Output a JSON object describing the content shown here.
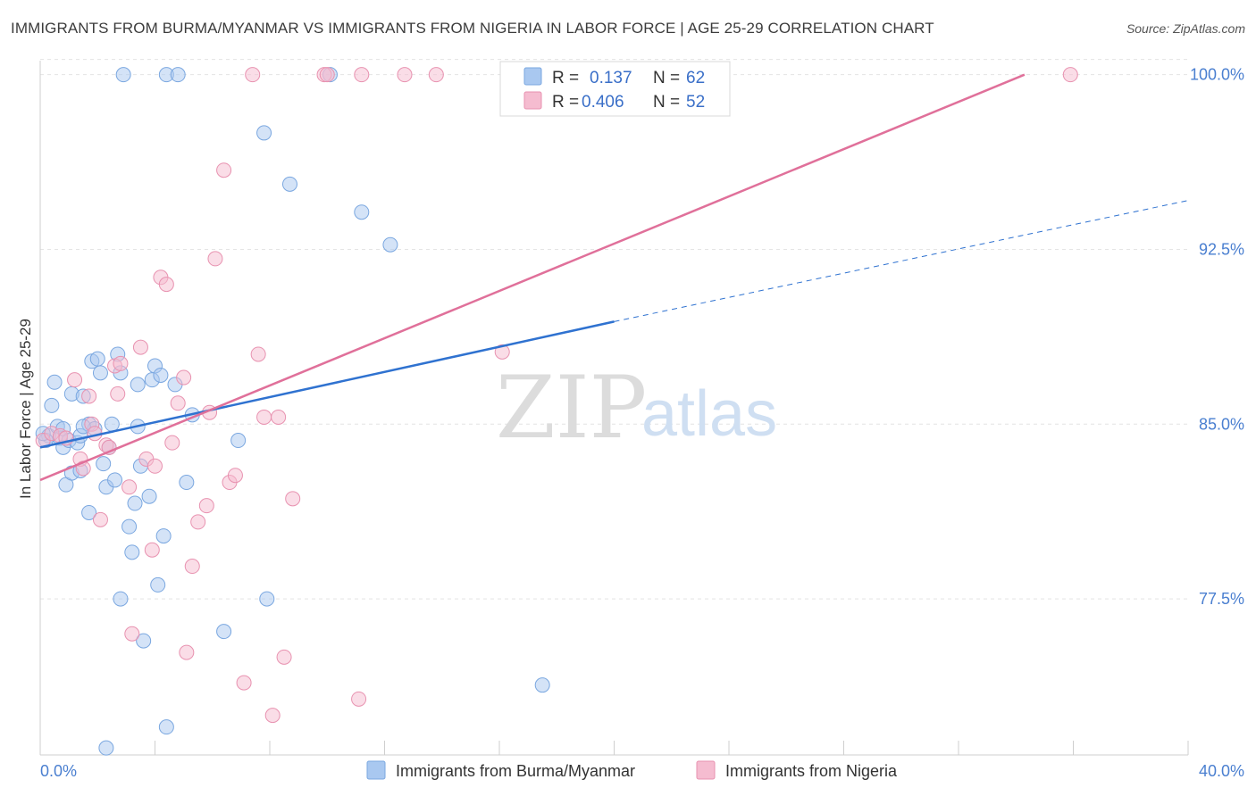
{
  "header": {
    "title": "IMMIGRANTS FROM BURMA/MYANMAR VS IMMIGRANTS FROM NIGERIA IN LABOR FORCE | AGE 25-29 CORRELATION CHART",
    "source": "Source: ZipAtlas.com"
  },
  "watermark": {
    "zip": "ZIP",
    "atlas": "atlas"
  },
  "colors": {
    "burma": "#a9c8f0",
    "burma_stroke": "#7aa7e0",
    "burma_line": "#2f72d0",
    "nigeria": "#f5bcd0",
    "nigeria_stroke": "#e892b0",
    "nigeria_line": "#e0709a",
    "tick": "#4a7fd0"
  },
  "legend": {
    "series": [
      {
        "r_label": "R =",
        "r_value": "0.137",
        "n_label": "N =",
        "n_value": "62"
      },
      {
        "r_label": "R =",
        "r_value": "0.406",
        "n_label": "N =",
        "n_value": "52"
      }
    ]
  },
  "chart_data": {
    "type": "scatter",
    "title": "IMMIGRANTS FROM BURMA/MYANMAR VS IMMIGRANTS FROM NIGERIA IN LABOR FORCE | AGE 25-29 CORRELATION CHART",
    "xlabel": "",
    "ylabel": "In Labor Force | Age 25-29",
    "xlim": [
      0,
      40
    ],
    "ylim": [
      70.8,
      100.6
    ],
    "x_tick_labels": [
      "0.0%",
      "40.0%"
    ],
    "y_ticks": [
      77.5,
      85.0,
      92.5,
      100.0
    ],
    "y_tick_labels": [
      "77.5%",
      "85.0%",
      "92.5%",
      "100.0%"
    ],
    "legend_placement": "top-center",
    "series": [
      {
        "name": "Immigrants from Burma/Myanmar",
        "r": 0.137,
        "n": 62,
        "trend": {
          "x": [
            0.0,
            20.0
          ],
          "y": [
            84.0,
            89.4
          ],
          "dashed_to": [
            40.0,
            94.6
          ]
        },
        "points": [
          [
            0.3,
            84.5
          ],
          [
            0.4,
            85.8
          ],
          [
            0.5,
            86.8
          ],
          [
            0.6,
            84.9
          ],
          [
            0.7,
            84.4
          ],
          [
            0.8,
            84.8
          ],
          [
            0.8,
            84.0
          ],
          [
            0.9,
            82.4
          ],
          [
            1.0,
            84.3
          ],
          [
            1.1,
            86.3
          ],
          [
            1.1,
            82.9
          ],
          [
            1.3,
            84.2
          ],
          [
            1.4,
            83.0
          ],
          [
            1.4,
            84.5
          ],
          [
            1.5,
            86.2
          ],
          [
            1.7,
            85.0
          ],
          [
            1.7,
            81.2
          ],
          [
            1.8,
            87.7
          ],
          [
            1.9,
            84.8
          ],
          [
            2.0,
            87.8
          ],
          [
            2.1,
            87.2
          ],
          [
            2.2,
            83.3
          ],
          [
            2.3,
            82.3
          ],
          [
            2.4,
            84.0
          ],
          [
            2.5,
            85.0
          ],
          [
            2.6,
            82.6
          ],
          [
            2.7,
            88.0
          ],
          [
            2.8,
            87.2
          ],
          [
            2.8,
            77.5
          ],
          [
            2.9,
            100.0
          ],
          [
            3.1,
            80.6
          ],
          [
            3.2,
            79.5
          ],
          [
            3.3,
            81.6
          ],
          [
            3.4,
            84.9
          ],
          [
            3.4,
            86.7
          ],
          [
            3.5,
            83.2
          ],
          [
            3.6,
            75.7
          ],
          [
            3.8,
            81.9
          ],
          [
            3.9,
            86.9
          ],
          [
            4.0,
            87.5
          ],
          [
            4.1,
            78.1
          ],
          [
            4.2,
            87.1
          ],
          [
            4.3,
            80.2
          ],
          [
            4.4,
            100.0
          ],
          [
            4.4,
            72.0
          ],
          [
            4.8,
            100.0
          ],
          [
            4.7,
            86.7
          ],
          [
            5.1,
            82.5
          ],
          [
            5.3,
            85.4
          ],
          [
            6.4,
            76.1
          ],
          [
            6.9,
            84.3
          ],
          [
            7.8,
            97.5
          ],
          [
            7.9,
            77.5
          ],
          [
            8.7,
            95.3
          ],
          [
            10.1,
            100.0
          ],
          [
            11.2,
            94.1
          ],
          [
            12.2,
            92.7
          ],
          [
            17.5,
            73.8
          ],
          [
            2.3,
            71.1
          ],
          [
            1.5,
            84.9
          ],
          [
            0.2,
            84.3
          ],
          [
            0.1,
            84.6
          ]
        ]
      },
      {
        "name": "Immigrants from Nigeria",
        "r": 0.406,
        "n": 52,
        "trend": {
          "x": [
            0.0,
            34.3
          ],
          "y": [
            82.6,
            100.0
          ]
        },
        "points": [
          [
            0.1,
            84.3
          ],
          [
            0.4,
            84.6
          ],
          [
            0.7,
            84.5
          ],
          [
            0.9,
            84.4
          ],
          [
            1.2,
            86.9
          ],
          [
            1.4,
            83.5
          ],
          [
            1.5,
            83.1
          ],
          [
            1.7,
            86.2
          ],
          [
            1.8,
            85.0
          ],
          [
            1.9,
            84.6
          ],
          [
            2.1,
            80.9
          ],
          [
            2.3,
            84.1
          ],
          [
            2.4,
            84.0
          ],
          [
            2.6,
            87.5
          ],
          [
            2.7,
            86.3
          ],
          [
            2.8,
            87.6
          ],
          [
            3.1,
            82.3
          ],
          [
            3.2,
            76.0
          ],
          [
            3.5,
            88.3
          ],
          [
            3.7,
            83.5
          ],
          [
            3.9,
            79.6
          ],
          [
            4.0,
            83.2
          ],
          [
            4.2,
            91.3
          ],
          [
            4.4,
            91.0
          ],
          [
            4.6,
            84.2
          ],
          [
            4.8,
            85.9
          ],
          [
            5.0,
            87.0
          ],
          [
            5.1,
            75.2
          ],
          [
            5.3,
            78.9
          ],
          [
            5.5,
            80.8
          ],
          [
            5.8,
            81.5
          ],
          [
            5.9,
            85.5
          ],
          [
            6.1,
            92.1
          ],
          [
            6.4,
            95.9
          ],
          [
            6.6,
            82.5
          ],
          [
            6.8,
            82.8
          ],
          [
            7.1,
            73.9
          ],
          [
            7.4,
            100.0
          ],
          [
            7.6,
            88.0
          ],
          [
            7.8,
            85.3
          ],
          [
            8.1,
            72.5
          ],
          [
            8.3,
            85.3
          ],
          [
            8.5,
            75.0
          ],
          [
            8.8,
            81.8
          ],
          [
            9.9,
            100.0
          ],
          [
            10.0,
            100.0
          ],
          [
            11.1,
            73.2
          ],
          [
            11.2,
            100.0
          ],
          [
            12.7,
            100.0
          ],
          [
            13.8,
            100.0
          ],
          [
            16.1,
            88.1
          ],
          [
            35.9,
            100.0
          ]
        ]
      }
    ]
  },
  "bottom_legend": {
    "items": [
      {
        "label": "Immigrants from Burma/Myanmar"
      },
      {
        "label": "Immigrants from Nigeria"
      }
    ]
  }
}
